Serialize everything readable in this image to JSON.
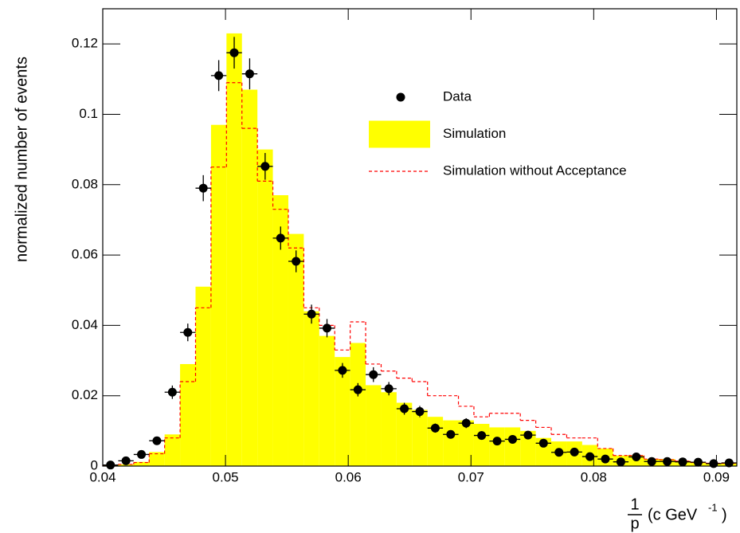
{
  "chart_data": {
    "type": "histogram",
    "ylabel": "normalized number of events",
    "xlabel": {
      "numerator": "1",
      "denominator": "p",
      "unit": "(c GeV",
      "exponent": "-1",
      "close": ")"
    },
    "xlim": [
      0.04,
      0.09166
    ],
    "ylim": [
      0,
      0.13
    ],
    "xticks": [
      0.04,
      0.05,
      0.06,
      0.07,
      0.08,
      0.09
    ],
    "yticks": [
      0,
      0.02,
      0.04,
      0.06,
      0.08,
      0.1,
      0.12
    ],
    "legend": "top-right",
    "bins": [
      0.04,
      0.04126,
      0.04252,
      0.04378,
      0.04504,
      0.0463,
      0.04756,
      0.04882,
      0.05008,
      0.05134,
      0.0526,
      0.05386,
      0.05512,
      0.05638,
      0.05764,
      0.0589,
      0.06016,
      0.06142,
      0.06268,
      0.06394,
      0.0652,
      0.06646,
      0.06772,
      0.06898,
      0.07024,
      0.0715,
      0.07276,
      0.07402,
      0.07528,
      0.07654,
      0.0778,
      0.07906,
      0.08032,
      0.08158,
      0.08284,
      0.0841,
      0.08536,
      0.08662,
      0.08788,
      0.08914,
      0.0904,
      0.09166
    ],
    "series": [
      {
        "name": "Simulation",
        "color": "#ffff00",
        "style": "filled",
        "values": [
          0.0003,
          0.0005,
          0.0012,
          0.004,
          0.009,
          0.029,
          0.051,
          0.097,
          0.123,
          0.107,
          0.09,
          0.077,
          0.066,
          0.044,
          0.037,
          0.031,
          0.035,
          0.023,
          0.021,
          0.018,
          0.016,
          0.014,
          0.013,
          0.013,
          0.012,
          0.011,
          0.011,
          0.01,
          0.008,
          0.007,
          0.007,
          0.006,
          0.005,
          0.003,
          0.003,
          0.002,
          0.002,
          0.0015,
          0.001,
          0.0008,
          0.0008
        ]
      },
      {
        "name": "Simulation without Acceptance",
        "color": "#ff0000",
        "style": "dashed",
        "values": [
          0.0003,
          0.0005,
          0.001,
          0.0035,
          0.008,
          0.024,
          0.045,
          0.085,
          0.109,
          0.096,
          0.081,
          0.073,
          0.062,
          0.045,
          0.04,
          0.033,
          0.041,
          0.029,
          0.027,
          0.025,
          0.024,
          0.02,
          0.02,
          0.017,
          0.014,
          0.015,
          0.015,
          0.013,
          0.011,
          0.009,
          0.008,
          0.008,
          0.005,
          0.003,
          0.003,
          0.002,
          0.0018,
          0.0014,
          0.001,
          0.0008,
          0.0008
        ]
      },
      {
        "name": "Data",
        "color": "#000000",
        "style": "points",
        "values": [
          0.0003,
          0.0015,
          0.0033,
          0.0072,
          0.021,
          0.038,
          0.079,
          0.111,
          0.1175,
          0.1115,
          0.0852,
          0.0648,
          0.0582,
          0.0432,
          0.0392,
          0.0272,
          0.0217,
          0.026,
          0.022,
          0.0163,
          0.0155,
          0.0108,
          0.009,
          0.0122,
          0.0087,
          0.0071,
          0.0076,
          0.0088,
          0.0065,
          0.0039,
          0.004,
          0.0027,
          0.002,
          0.0012,
          0.0026,
          0.0013,
          0.0013,
          0.0012,
          0.0011,
          0.0007,
          0.0009
        ],
        "errors": [
          0.0003,
          0.0006,
          0.0008,
          0.0011,
          0.0019,
          0.0025,
          0.0037,
          0.0044,
          0.0045,
          0.0044,
          0.0038,
          0.0033,
          0.0031,
          0.0027,
          0.0026,
          0.0021,
          0.0019,
          0.0021,
          0.0019,
          0.0017,
          0.0016,
          0.0013,
          0.0012,
          0.0014,
          0.0012,
          0.0011,
          0.0011,
          0.0012,
          0.001,
          0.0008,
          0.0008,
          0.0007,
          0.0006,
          0.0005,
          0.0007,
          0.0005,
          0.0005,
          0.0005,
          0.0004,
          0.0003,
          0.0004
        ]
      }
    ]
  }
}
